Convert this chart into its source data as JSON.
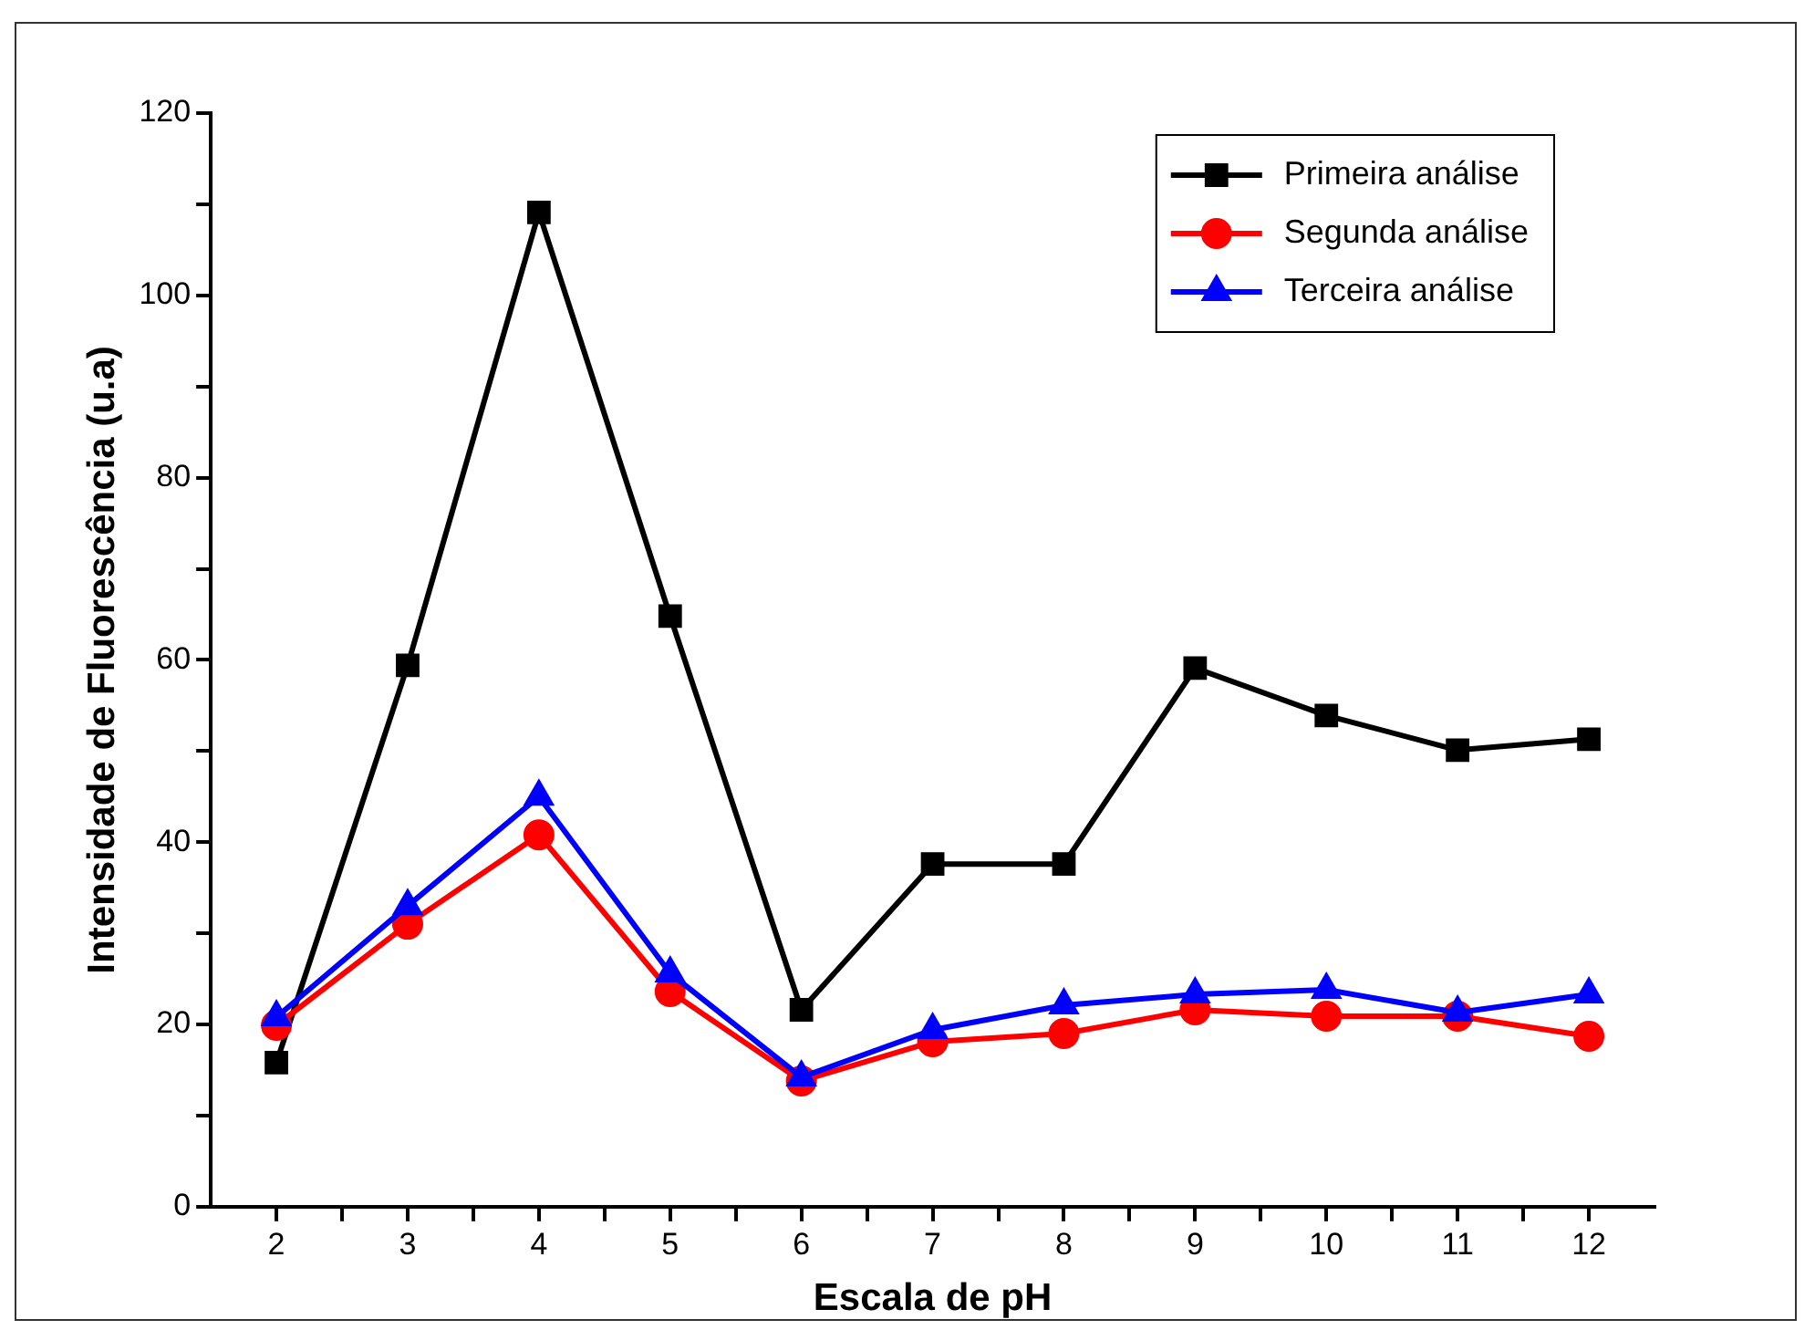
{
  "chart_data": {
    "type": "line",
    "xlabel": "Escala de pH",
    "ylabel": "Intensidade de Fluorescência (u.a)",
    "x": [
      2,
      3,
      4,
      5,
      6,
      7,
      8,
      9,
      10,
      11,
      12
    ],
    "series": [
      {
        "name": "Primeira análise",
        "color": "#000000",
        "marker": "square",
        "values": [
          15.8,
          59.4,
          109.1,
          64.8,
          21.6,
          37.6,
          37.6,
          59.1,
          53.9,
          50.1,
          51.3
        ]
      },
      {
        "name": "Segunda análise",
        "color": "#ff0000",
        "marker": "circle",
        "values": [
          19.9,
          31,
          40.8,
          23.6,
          13.8,
          18.1,
          19.0,
          21.6,
          20.9,
          20.9,
          18.7
        ]
      },
      {
        "name": "Terceira análise",
        "color": "#0000ff",
        "marker": "triangle",
        "values": [
          20.8,
          33,
          45,
          25.6,
          14.2,
          19.4,
          22.1,
          23.3,
          23.8,
          21.3,
          23.3
        ]
      }
    ],
    "xlim": [
      1.5,
      12.5
    ],
    "xticks": [
      2,
      {
        "value": 2.5,
        "label": null
      },
      3,
      {
        "value": 3.5,
        "label": null
      },
      4,
      {
        "value": 4.5,
        "label": null
      },
      5,
      {
        "value": 5.5,
        "label": null
      },
      6,
      {
        "value": 6.5,
        "label": null
      },
      7,
      {
        "value": 7.5,
        "label": null
      },
      8,
      {
        "value": 8.5,
        "label": null
      },
      9,
      {
        "value": 9.5,
        "label": null
      },
      10,
      {
        "value": 10.5,
        "label": null
      },
      11,
      {
        "value": 11.5,
        "label": null
      },
      12
    ],
    "ylim": [
      0,
      120
    ],
    "yticks": [
      0,
      {
        "value": 10,
        "label": null
      },
      20,
      {
        "value": 30,
        "label": null
      },
      40,
      {
        "value": 50,
        "label": null
      },
      60,
      {
        "value": 70,
        "label": null
      },
      80,
      {
        "value": 90,
        "label": null
      },
      100,
      {
        "value": 110,
        "label": null
      },
      120
    ],
    "grid": false,
    "legend": "top right",
    "line_style": "solid"
  }
}
